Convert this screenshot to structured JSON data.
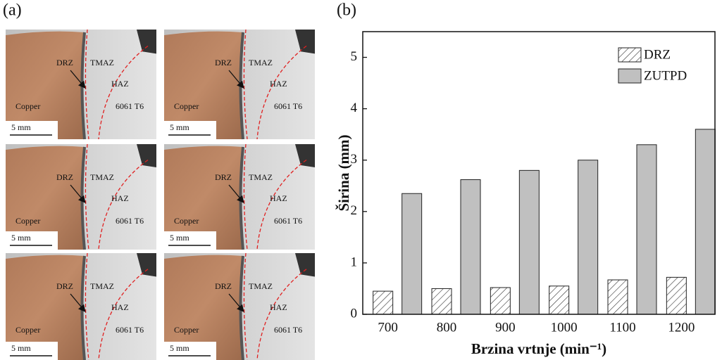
{
  "panel_a": {
    "label": "(a)",
    "labels": {
      "drz": "DRZ",
      "tmaz": "TMAZ",
      "haz": "HAZ",
      "copper": "Copper",
      "alloy": "6061 T6",
      "scale": "5 mm"
    }
  },
  "chart_data": {
    "type": "bar",
    "panel_label": "(b)",
    "x_label": "Brzina vrtnje (min⁻¹)",
    "y_label": "Širina (mm)",
    "categories": [
      "700",
      "800",
      "900",
      "1000",
      "1100",
      "1200"
    ],
    "series": [
      {
        "name": "DRZ",
        "color": "#ffffff",
        "hatch": true,
        "values": [
          0.45,
          0.5,
          0.52,
          0.55,
          0.67,
          0.72
        ]
      },
      {
        "name": "ZUTPD",
        "color": "#c0c0c0",
        "hatch": false,
        "values": [
          2.35,
          2.62,
          2.8,
          3.0,
          3.3,
          3.6
        ]
      }
    ],
    "ylim": [
      0,
      5.5
    ],
    "yticks": [
      0,
      1,
      2,
      3,
      4,
      5
    ],
    "legend": "upper right",
    "grid": false
  }
}
